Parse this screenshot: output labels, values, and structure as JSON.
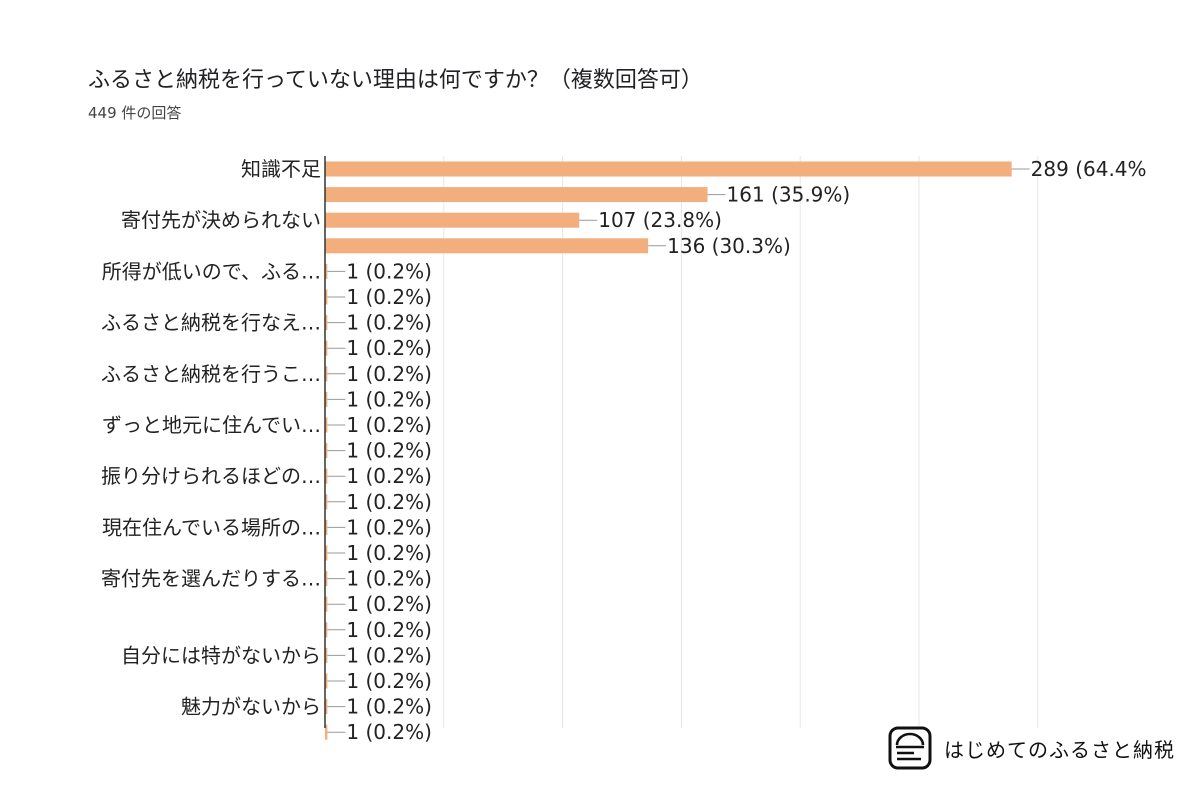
{
  "header": {
    "title": "ふるさと納税を行っていない理由は何ですか？（複数回答可）",
    "response_count": "449 件の回答"
  },
  "brand": {
    "name": "はじめてのふるさと納税",
    "icon": "furusato-logo-icon"
  },
  "colors": {
    "bar": "#F2AE7C",
    "axis": "#333333",
    "grid": "#E6E6E6",
    "leader": "#999999"
  },
  "chart_data": {
    "type": "bar",
    "orientation": "horizontal",
    "title": "ふるさと納税を行っていない理由は何ですか？（複数回答可）",
    "total_responses": 449,
    "categories": [
      "知識不足",
      "",
      "寄付先が決められない",
      "",
      "所得が低いので、ふる…",
      "",
      "ふるさと納税を行なえ…",
      "",
      "ふるさと納税を行うこ…",
      "",
      "ずっと地元に住んでい…",
      "",
      "振り分けられるほどの…",
      "",
      "現在住んでいる場所の…",
      "",
      "寄付先を選んだりする…",
      "",
      "",
      "自分には特がないから",
      "",
      "魅力がないから",
      ""
    ],
    "values": [
      289,
      161,
      107,
      136,
      1,
      1,
      1,
      1,
      1,
      1,
      1,
      1,
      1,
      1,
      1,
      1,
      1,
      1,
      1,
      1,
      1,
      1,
      1
    ],
    "value_labels": [
      "289 (64.4%",
      "161 (35.9%)",
      "107 (23.8%)",
      "136 (30.3%)",
      "1 (0.2%)",
      "1 (0.2%)",
      "1 (0.2%)",
      "1 (0.2%)",
      "1 (0.2%)",
      "1 (0.2%)",
      "1 (0.2%)",
      "1 (0.2%)",
      "1 (0.2%)",
      "1 (0.2%)",
      "1 (0.2%)",
      "1 (0.2%)",
      "1 (0.2%)",
      "1 (0.2%)",
      "1 (0.2%)",
      "1 (0.2%)",
      "1 (0.2%)",
      "1 (0.2%)",
      "1 (0.2%)"
    ],
    "xlim": [
      0,
      300
    ],
    "grid": true,
    "legend": "none"
  }
}
